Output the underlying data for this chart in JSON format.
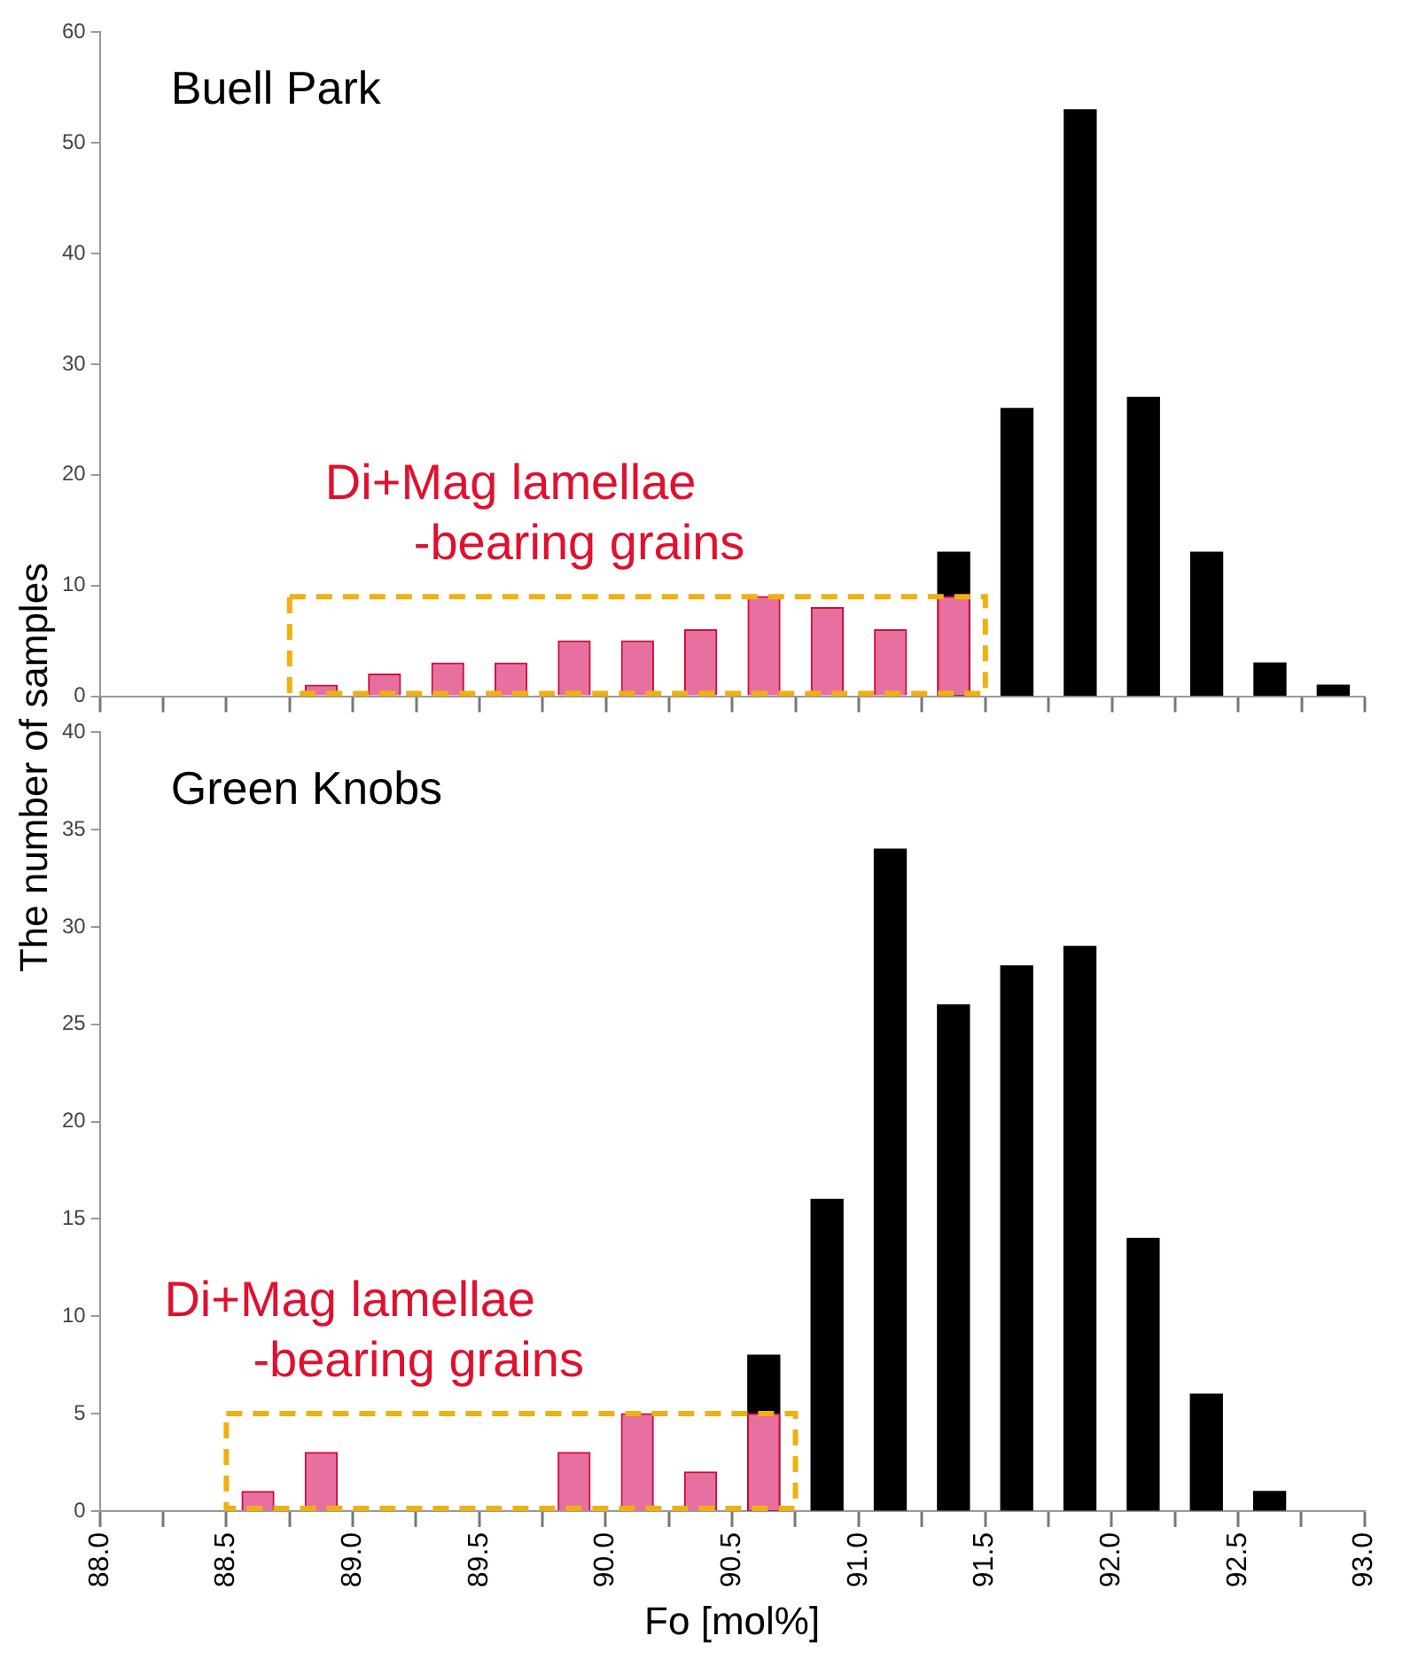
{
  "chart_data": [
    {
      "type": "bar",
      "title": "Buell Park",
      "ylabel": "The number of samples",
      "annotations": [
        "Di+Mag lamellae\n-bearing grains"
      ],
      "x": [
        88.875,
        89.125,
        89.375,
        89.625,
        89.875,
        90.125,
        90.375,
        90.625,
        90.875,
        91.125,
        91.375,
        91.625,
        91.875,
        92.125,
        92.375,
        92.625,
        92.875
      ],
      "series": [
        {
          "color": "#000000",
          "values": [
            null,
            null,
            null,
            null,
            null,
            null,
            null,
            null,
            null,
            null,
            13,
            26,
            53,
            27,
            13,
            3,
            1
          ]
        },
        {
          "color": "#e870a0",
          "values": [
            1,
            2,
            3,
            3,
            5,
            5,
            6,
            9,
            8,
            6,
            9,
            null,
            null,
            null,
            null,
            null,
            null
          ]
        }
      ],
      "xlim": [
        88,
        93
      ],
      "xticks": [
        88,
        88.25,
        88.5,
        88.75,
        89,
        89.25,
        89.5,
        89.75,
        90,
        90.25,
        90.5,
        90.75,
        91,
        91.25,
        91.5,
        91.75,
        92,
        92.25,
        92.5,
        92.75,
        93
      ],
      "ylim": [
        0,
        60
      ],
      "yticks": [
        0,
        10,
        20,
        30,
        40,
        50,
        60
      ],
      "tick_labels": "y",
      "grid": false,
      "legend": false
    },
    {
      "type": "bar",
      "title": "Green Knobs",
      "xlabel": "Fo [mol%]",
      "annotations": [
        "Di+Mag lamellae\n-bearing grains"
      ],
      "x": [
        88.625,
        88.875,
        89.125,
        89.375,
        89.625,
        89.875,
        90.125,
        90.375,
        90.625,
        90.875,
        91.125,
        91.375,
        91.625,
        91.875,
        92.125,
        92.375,
        92.625
      ],
      "series": [
        {
          "color": "#000000",
          "values": [
            null,
            null,
            null,
            null,
            null,
            null,
            null,
            null,
            8,
            16,
            34,
            26,
            28,
            29,
            14,
            6,
            1
          ]
        },
        {
          "color": "#e870a0",
          "values": [
            1,
            3,
            0,
            0,
            0,
            3,
            5,
            2,
            5,
            null,
            null,
            null,
            null,
            null,
            null,
            null,
            null
          ]
        }
      ],
      "xlim": [
        88,
        93
      ],
      "xticks": [
        {
          "value": 88,
          "label": "88.0"
        },
        {
          "value": 88.25,
          "label": null
        },
        {
          "value": 88.5,
          "label": "88.5"
        },
        {
          "value": 88.75,
          "label": null
        },
        {
          "value": 89,
          "label": "89.0"
        },
        {
          "value": 89.25,
          "label": null
        },
        {
          "value": 89.5,
          "label": "89.5"
        },
        {
          "value": 89.75,
          "label": null
        },
        {
          "value": 90,
          "label": "90.0"
        },
        {
          "value": 90.25,
          "label": null
        },
        {
          "value": 90.5,
          "label": "90.5"
        },
        {
          "value": 90.75,
          "label": null
        },
        {
          "value": 91,
          "label": "91.0"
        },
        {
          "value": 91.25,
          "label": null
        },
        {
          "value": 91.5,
          "label": "91.5"
        },
        {
          "value": 91.75,
          "label": null
        },
        {
          "value": 92,
          "label": "92.0"
        },
        {
          "value": 92.25,
          "label": null
        },
        {
          "value": 92.5,
          "label": "92.5"
        },
        {
          "value": 92.75,
          "label": null
        },
        {
          "value": 93,
          "label": "93.0"
        }
      ],
      "ylim": [
        0,
        40
      ],
      "yticks": [
        0,
        5,
        10,
        15,
        20,
        25,
        30,
        35,
        40
      ],
      "grid": false,
      "legend": false
    }
  ]
}
